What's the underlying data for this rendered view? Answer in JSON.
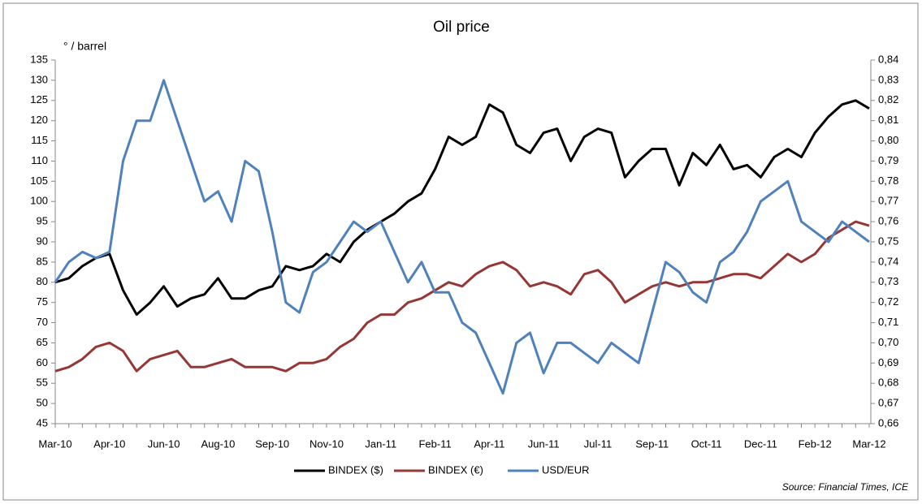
{
  "chart_data": {
    "type": "line",
    "title": "Oil price",
    "y_label": "° / barrel",
    "source": "Source: Financial Times, ICE",
    "categories": [
      "Mar-10",
      null,
      null,
      null,
      "Apr-10",
      null,
      null,
      null,
      "Jun-10",
      null,
      null,
      null,
      "Aug-10",
      null,
      null,
      null,
      "Sep-10",
      null,
      null,
      null,
      "Nov-10",
      null,
      null,
      null,
      "Jan-11",
      null,
      null,
      null,
      "Feb-11",
      null,
      null,
      null,
      "Apr-11",
      null,
      null,
      null,
      "Jun-11",
      null,
      null,
      null,
      "Jul-11",
      null,
      null,
      null,
      "Sep-11",
      null,
      null,
      null,
      "Oct-11",
      null,
      null,
      null,
      "Dec-11",
      null,
      null,
      null,
      "Feb-12",
      null,
      null,
      null,
      "Mar-12"
    ],
    "series": [
      {
        "name": "BINDEX ($)",
        "color": "#000000",
        "values": [
          80,
          81,
          84,
          86,
          87,
          78,
          72,
          75,
          79,
          74,
          76,
          77,
          81,
          76,
          76,
          78,
          79,
          84,
          83,
          84,
          87,
          85,
          90,
          93,
          95,
          97,
          100,
          102,
          108,
          116,
          114,
          116,
          124,
          122,
          114,
          112,
          117,
          118,
          110,
          116,
          118,
          117,
          106,
          110,
          113,
          113,
          104,
          112,
          109,
          114,
          108,
          109,
          106,
          111,
          113,
          111,
          117,
          121,
          124,
          125,
          123
        ]
      },
      {
        "name": "BINDEX (€)",
        "color": "#953735",
        "values": [
          58,
          59,
          61,
          64,
          65,
          63,
          58,
          61,
          62,
          63,
          59,
          59,
          60,
          61,
          59,
          59,
          59,
          58,
          60,
          60,
          61,
          64,
          66,
          70,
          72,
          72,
          75,
          76,
          78,
          80,
          79,
          82,
          84,
          85,
          83,
          79,
          80,
          79,
          77,
          82,
          83,
          80,
          75,
          77,
          79,
          80,
          79,
          80,
          80,
          81,
          82,
          82,
          81,
          84,
          87,
          85,
          87,
          91,
          93,
          95,
          94
        ]
      },
      {
        "name": "USD/EUR",
        "color": "#4f81bd",
        "axis": "y2",
        "values": [
          0.73,
          0.74,
          0.745,
          0.742,
          0.745,
          0.79,
          0.81,
          0.81,
          0.83,
          0.81,
          0.79,
          0.77,
          0.775,
          0.76,
          0.79,
          0.785,
          0.755,
          0.72,
          0.715,
          0.735,
          0.74,
          0.75,
          0.76,
          0.755,
          0.76,
          0.745,
          0.73,
          0.74,
          0.725,
          0.725,
          0.71,
          0.705,
          0.69,
          0.675,
          0.7,
          0.705,
          0.685,
          0.7,
          0.7,
          0.695,
          0.69,
          0.7,
          0.695,
          0.69,
          0.715,
          0.74,
          0.735,
          0.725,
          0.72,
          0.74,
          0.745,
          0.755,
          0.77,
          0.775,
          0.78,
          0.76,
          0.755,
          0.75,
          0.76,
          0.755,
          0.75
        ]
      }
    ],
    "ylim": [
      45,
      135
    ],
    "yticks": [
      45,
      50,
      55,
      60,
      65,
      70,
      75,
      80,
      85,
      90,
      95,
      100,
      105,
      110,
      115,
      120,
      125,
      130,
      135
    ],
    "y2lim": [
      0.66,
      0.84
    ],
    "y2ticks": [
      {
        "value": 0.66,
        "label": "0,66"
      },
      {
        "value": 0.67,
        "label": "0,67"
      },
      {
        "value": 0.68,
        "label": "0,68"
      },
      {
        "value": 0.69,
        "label": "0,69"
      },
      {
        "value": 0.7,
        "label": "0,70"
      },
      {
        "value": 0.71,
        "label": "0,71"
      },
      {
        "value": 0.72,
        "label": "0,72"
      },
      {
        "value": 0.73,
        "label": "0,73"
      },
      {
        "value": 0.74,
        "label": "0,74"
      },
      {
        "value": 0.75,
        "label": "0,75"
      },
      {
        "value": 0.76,
        "label": "0,76"
      },
      {
        "value": 0.77,
        "label": "0,77"
      },
      {
        "value": 0.78,
        "label": "0,78"
      },
      {
        "value": 0.79,
        "label": "0,79"
      },
      {
        "value": 0.8,
        "label": "0,80"
      },
      {
        "value": 0.81,
        "label": "0,81"
      },
      {
        "value": 0.82,
        "label": "0,82"
      },
      {
        "value": 0.83,
        "label": "0,83"
      },
      {
        "value": 0.84,
        "label": "0,84"
      }
    ],
    "grid": false,
    "legend": "bottom"
  }
}
